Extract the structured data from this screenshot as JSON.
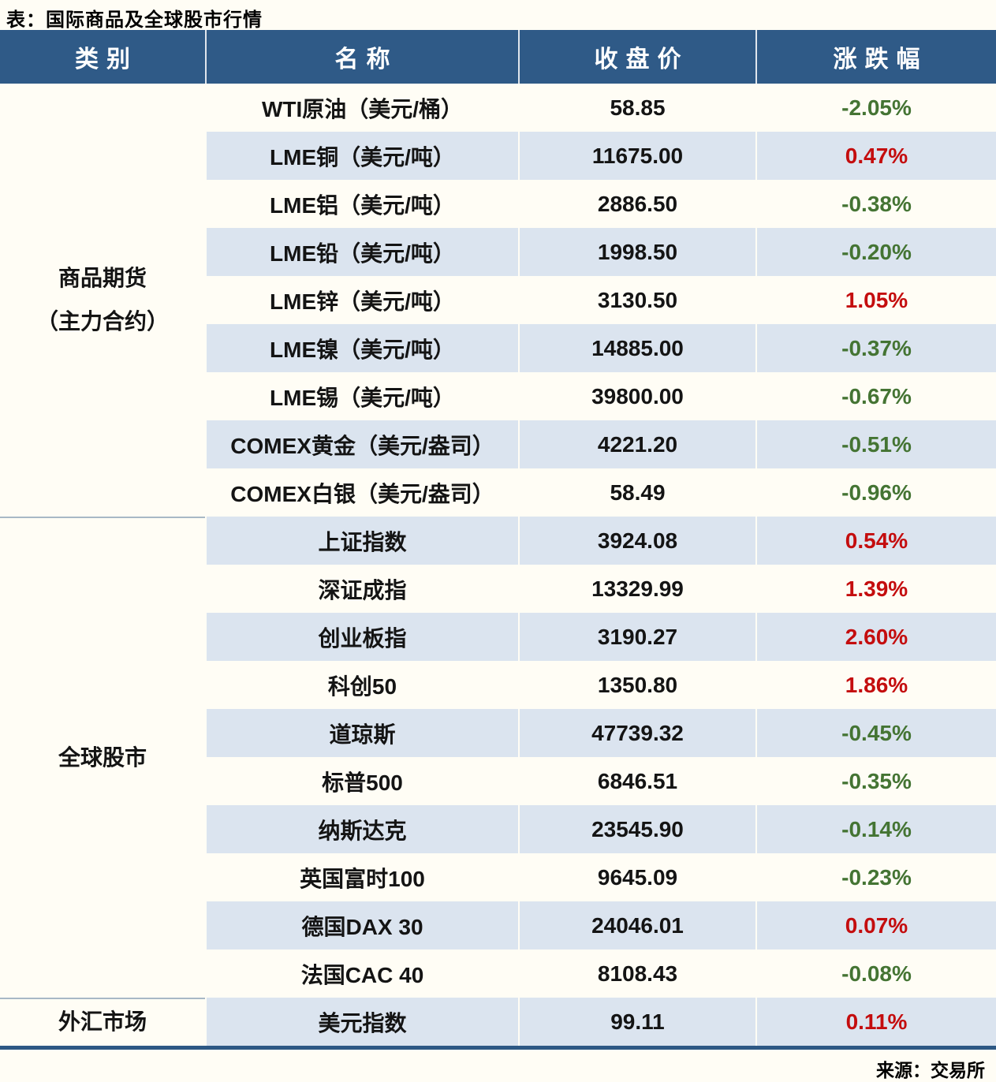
{
  "title": "表：国际商品及全球股市行情",
  "source": "来源：交易所",
  "colors": {
    "header_bg": "#2f5a87",
    "header_text": "#ffffff",
    "stripe_row": "#dbe4ef",
    "positive": "#c40d0e",
    "negative": "#447433",
    "bottom_border": "#2d5884"
  },
  "chart_data": {
    "type": "table",
    "title": "表：国际商品及全球股市行情",
    "columns": [
      "类别",
      "名称",
      "收盘价",
      "涨跌幅"
    ],
    "groups": [
      {
        "category_lines": [
          "商品期货",
          "（主力合约）"
        ],
        "rows": [
          {
            "name": "WTI原油（美元/桶）",
            "close": "58.85",
            "change": "-2.05%"
          },
          {
            "name": "LME铜（美元/吨）",
            "close": "11675.00",
            "change": "0.47%"
          },
          {
            "name": "LME铝（美元/吨）",
            "close": "2886.50",
            "change": "-0.38%"
          },
          {
            "name": "LME铅（美元/吨）",
            "close": "1998.50",
            "change": "-0.20%"
          },
          {
            "name": "LME锌（美元/吨）",
            "close": "3130.50",
            "change": "1.05%"
          },
          {
            "name": "LME镍（美元/吨）",
            "close": "14885.00",
            "change": "-0.37%"
          },
          {
            "name": "LME锡（美元/吨）",
            "close": "39800.00",
            "change": "-0.67%"
          },
          {
            "name": "COMEX黄金（美元/盎司）",
            "close": "4221.20",
            "change": "-0.51%"
          },
          {
            "name": "COMEX白银（美元/盎司）",
            "close": "58.49",
            "change": "-0.96%"
          }
        ]
      },
      {
        "category_lines": [
          "全球股市"
        ],
        "rows": [
          {
            "name": "上证指数",
            "close": "3924.08",
            "change": "0.54%"
          },
          {
            "name": "深证成指",
            "close": "13329.99",
            "change": "1.39%"
          },
          {
            "name": "创业板指",
            "close": "3190.27",
            "change": "2.60%"
          },
          {
            "name": "科创50",
            "close": "1350.80",
            "change": "1.86%"
          },
          {
            "name": "道琼斯",
            "close": "47739.32",
            "change": "-0.45%"
          },
          {
            "name": "标普500",
            "close": "6846.51",
            "change": "-0.35%"
          },
          {
            "name": "纳斯达克",
            "close": "23545.90",
            "change": "-0.14%"
          },
          {
            "name": "英国富时100",
            "close": "9645.09",
            "change": "-0.23%"
          },
          {
            "name": "德国DAX 30",
            "close": "24046.01",
            "change": "0.07%"
          },
          {
            "name": "法国CAC 40",
            "close": "8108.43",
            "change": "-0.08%"
          }
        ]
      },
      {
        "category_lines": [
          "外汇市场"
        ],
        "rows": [
          {
            "name": "美元指数",
            "close": "99.11",
            "change": "0.11%"
          }
        ]
      }
    ]
  }
}
